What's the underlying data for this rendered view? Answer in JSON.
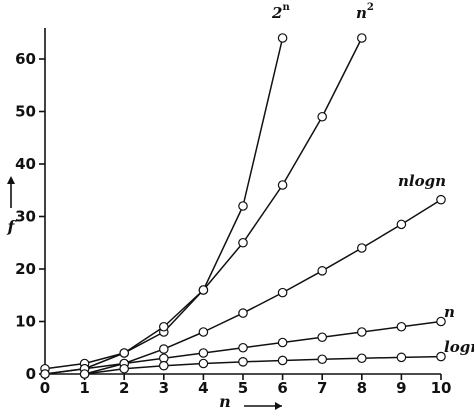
{
  "chart_data": {
    "type": "line",
    "xlabel": "n",
    "ylabel": "f",
    "xlim": [
      0,
      10
    ],
    "ylim": [
      0,
      64
    ],
    "x_ticks": [
      0,
      1,
      2,
      3,
      4,
      5,
      6,
      7,
      8,
      9,
      10
    ],
    "y_ticks": [
      0,
      10,
      20,
      30,
      40,
      50,
      60
    ],
    "grid": false,
    "series": [
      {
        "name": "2",
        "label_sup": "n",
        "x": [
          0,
          1,
          2,
          3,
          4,
          5,
          6
        ],
        "y": [
          1,
          2,
          4,
          8,
          16,
          32,
          64
        ]
      },
      {
        "name": "n",
        "label_sup": "2",
        "x": [
          0,
          1,
          2,
          3,
          4,
          5,
          6,
          7,
          8
        ],
        "y": [
          0,
          1,
          4,
          9,
          16,
          25,
          36,
          49,
          64
        ]
      },
      {
        "name": "nlogn",
        "x": [
          1,
          2,
          3,
          4,
          5,
          6,
          7,
          8,
          9,
          10
        ],
        "y": [
          0,
          2,
          4.75,
          8,
          11.6,
          15.5,
          19.65,
          24,
          28.5,
          33.2
        ]
      },
      {
        "name": "n",
        "x": [
          0,
          1,
          2,
          3,
          4,
          5,
          6,
          7,
          8,
          9,
          10
        ],
        "y": [
          0,
          1,
          2,
          3,
          4,
          5,
          6,
          7,
          8,
          9,
          10
        ]
      },
      {
        "name": "logn",
        "x": [
          1,
          2,
          3,
          4,
          5,
          6,
          7,
          8,
          9,
          10
        ],
        "y": [
          0,
          1,
          1.58,
          2,
          2.32,
          2.58,
          2.81,
          3,
          3.17,
          3.32
        ]
      }
    ]
  }
}
